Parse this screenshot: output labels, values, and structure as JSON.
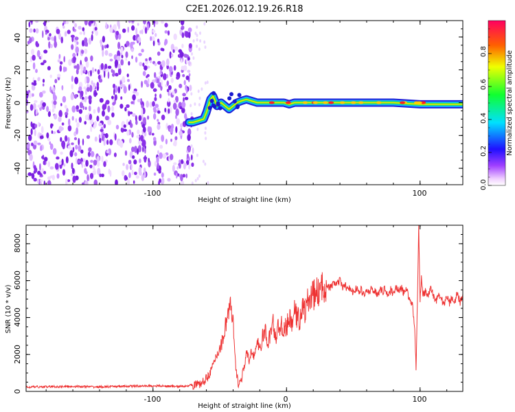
{
  "title": "C2E1.2026.012.19.26.R18",
  "chart_data": [
    {
      "type": "heatmap",
      "name": "spectrogram",
      "xlabel": "Height of straight line (km)",
      "ylabel": "Frequency (Hz)",
      "xlim": [
        -195,
        132
      ],
      "ylim": [
        -50,
        50
      ],
      "xticks": [
        -100,
        0,
        100
      ],
      "xtick_labels": [
        "-100",
        "",
        "100"
      ],
      "yticks": [
        -40,
        -20,
        0,
        20,
        40
      ],
      "ytick_labels": [
        "-40",
        "-20",
        "0",
        "20",
        "40"
      ],
      "noise_region_x": [
        -195,
        -72
      ],
      "signal_track": {
        "x": [
          -73,
          -70,
          -66,
          -62,
          -60,
          -57,
          -55,
          -52,
          -49,
          -46,
          -43,
          -40,
          -37,
          -34,
          -30,
          -26,
          -22,
          -18,
          -14,
          -10,
          -6,
          -2,
          2,
          6,
          10,
          20,
          40,
          60,
          80,
          100,
          120,
          132
        ],
        "y": [
          -12,
          -12,
          -11,
          -10,
          -6,
          2,
          4,
          -2,
          0,
          -2,
          -4,
          -2,
          0,
          1,
          2,
          1,
          0,
          0,
          0,
          0,
          0,
          0,
          -1,
          0,
          0,
          0,
          0,
          0,
          0,
          -1,
          -1,
          -1
        ]
      },
      "colorbar": {
        "label": "Normalized spectral amplitude",
        "range": [
          0,
          1
        ],
        "ticks": [
          0.0,
          0.2,
          0.4,
          0.6,
          0.8
        ],
        "tick_labels": [
          "0.0",
          "0.2",
          "0.4",
          "0.6",
          "0.8"
        ]
      }
    },
    {
      "type": "line",
      "name": "snr",
      "xlabel": "Height of straight line (km)",
      "ylabel": "SNR (10 * v/v)",
      "xlim": [
        -195,
        132
      ],
      "ylim": [
        0,
        9000
      ],
      "xticks": [
        -100,
        0,
        100
      ],
      "xtick_labels": [
        "-100",
        "0",
        "100"
      ],
      "yticks": [
        0,
        2000,
        4000,
        6000,
        8000
      ],
      "ytick_labels": [
        "0",
        "2000",
        "4000",
        "6000",
        "8000"
      ],
      "color": "#ee3333",
      "series": [
        {
          "name": "SNR",
          "x": [
            -195,
            -180,
            -160,
            -140,
            -120,
            -100,
            -80,
            -70,
            -64,
            -60,
            -56,
            -52,
            -48,
            -46,
            -44,
            -42,
            -40,
            -38,
            -36,
            -34,
            -32,
            -30,
            -28,
            -26,
            -24,
            -22,
            -20,
            -18,
            -16,
            -14,
            -12,
            -10,
            -8,
            -6,
            -4,
            -2,
            0,
            2,
            4,
            6,
            8,
            10,
            12,
            14,
            16,
            18,
            20,
            22,
            24,
            26,
            28,
            30,
            32,
            34,
            36,
            38,
            40,
            42,
            44,
            46,
            48,
            50,
            52,
            54,
            56,
            58,
            60,
            62,
            64,
            66,
            68,
            70,
            72,
            74,
            76,
            78,
            80,
            82,
            84,
            86,
            88,
            90,
            92,
            94,
            96,
            97,
            98,
            99,
            100,
            101,
            102,
            104,
            106,
            108,
            110,
            112,
            114,
            116,
            118,
            120,
            122,
            124,
            126,
            128,
            130,
            132
          ],
          "y": [
            230,
            250,
            270,
            240,
            280,
            300,
            260,
            350,
            400,
            700,
            1200,
            2000,
            2700,
            3500,
            4200,
            4600,
            3600,
            1200,
            400,
            600,
            1200,
            2100,
            1600,
            2300,
            1900,
            2600,
            2300,
            2900,
            3300,
            2500,
            3200,
            3700,
            2900,
            3500,
            3600,
            3300,
            3500,
            3900,
            3700,
            4300,
            4000,
            3900,
            4600,
            4300,
            4900,
            5100,
            5200,
            5300,
            5400,
            5500,
            5700,
            5800,
            5600,
            5700,
            5900,
            5800,
            6000,
            5600,
            5800,
            5400,
            5700,
            5300,
            5600,
            5400,
            5500,
            5200,
            5500,
            5300,
            5600,
            5400,
            5300,
            5500,
            5400,
            5600,
            5200,
            5500,
            5300,
            5700,
            5400,
            5600,
            5300,
            5500,
            5000,
            4800,
            3500,
            1200,
            5000,
            9000,
            4800,
            6200,
            5200,
            5400,
            5100,
            5600,
            5200,
            4900,
            5300,
            5000,
            4700,
            5200,
            4800,
            5100,
            4900,
            5300,
            4800,
            5200
          ]
        }
      ]
    }
  ]
}
